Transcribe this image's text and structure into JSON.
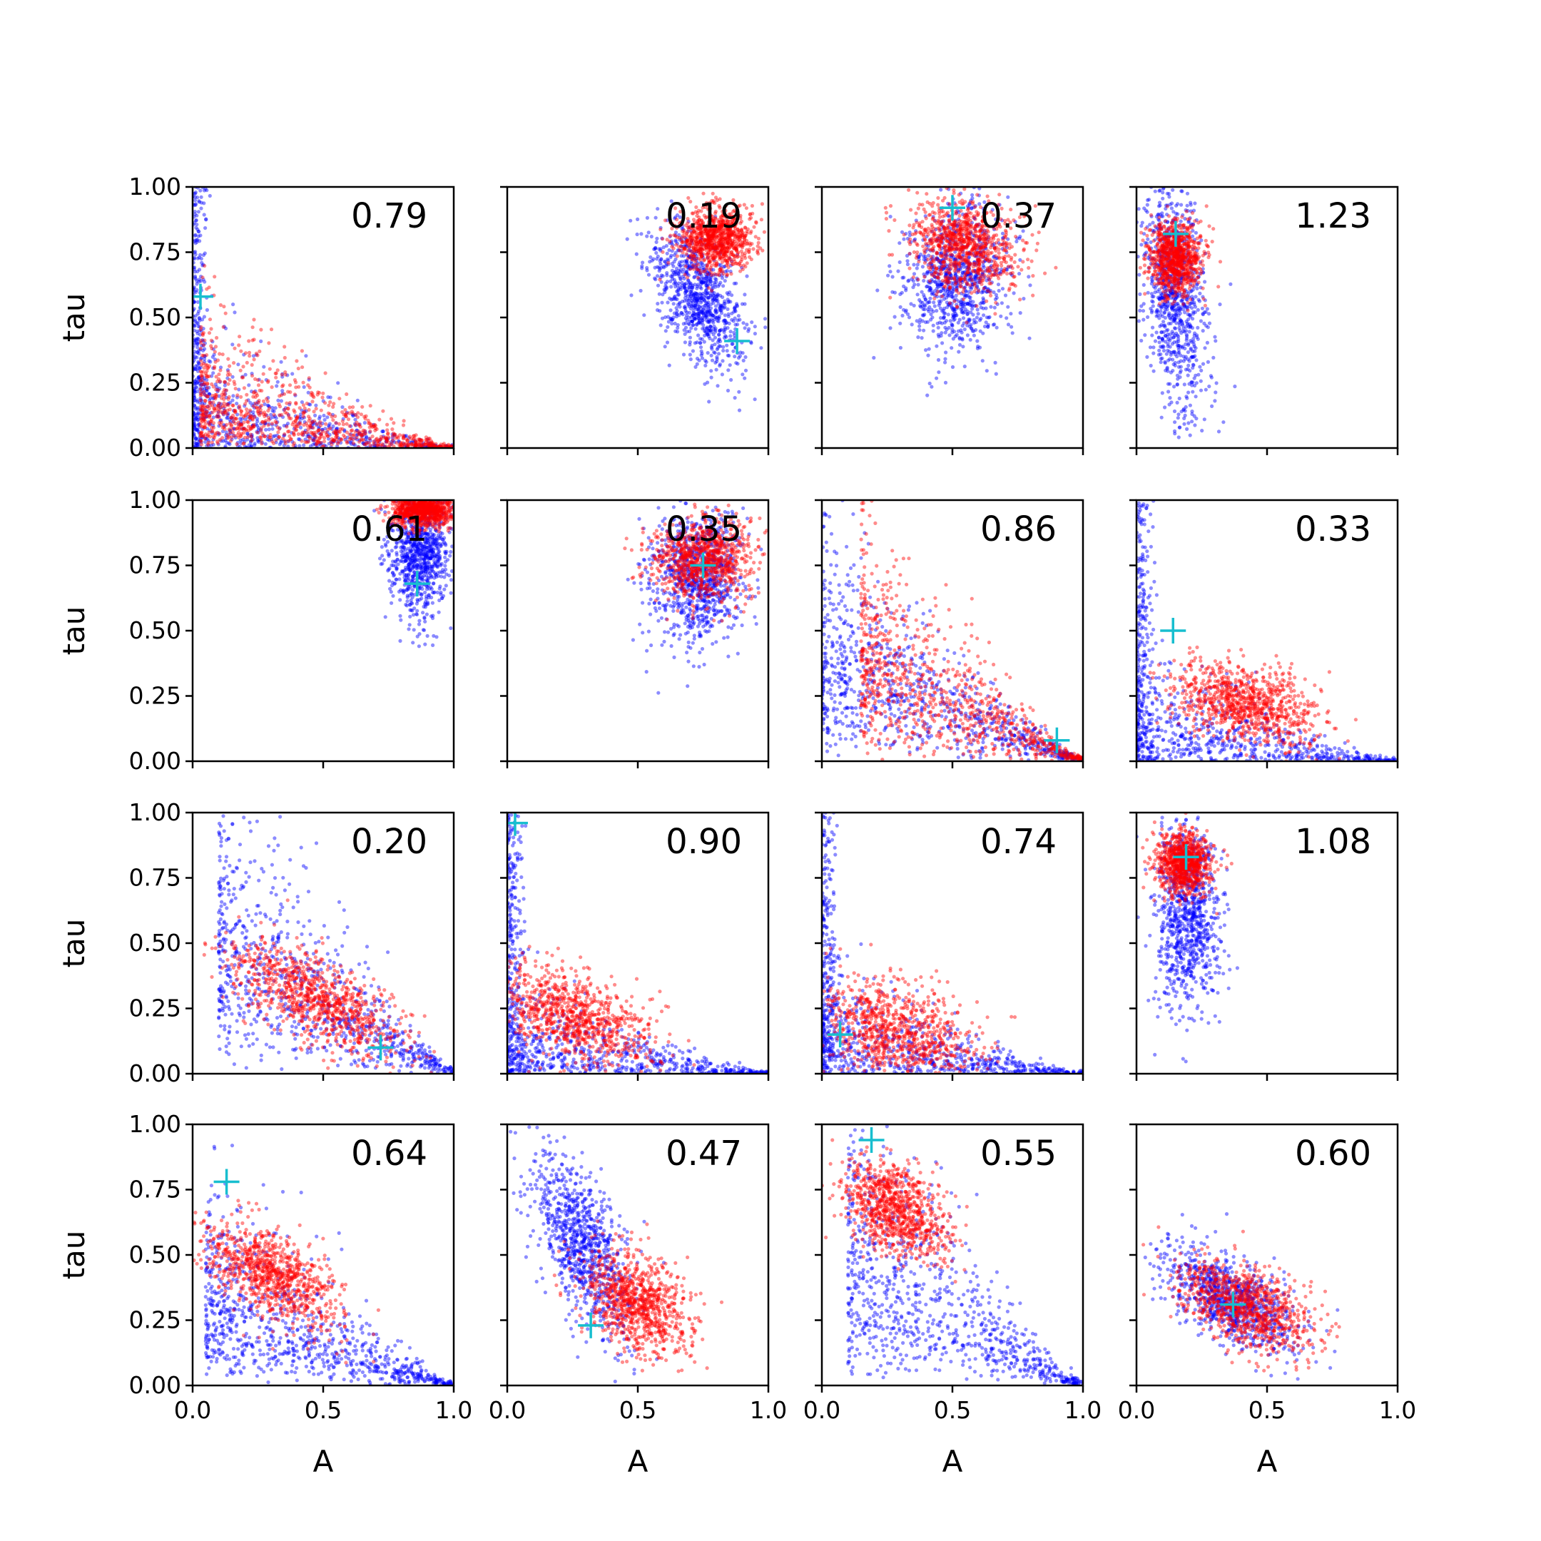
{
  "chart_data": {
    "type": "scatter",
    "layout": "4x4 grid of scatter panels with shared axes",
    "xlabel": "A",
    "ylabel": "tau",
    "xlim": [
      0,
      1
    ],
    "ylim": [
      0,
      1
    ],
    "xticks": [
      "0.0",
      "0.5",
      "1.0"
    ],
    "yticks": [
      "0.00",
      "0.25",
      "0.50",
      "0.75",
      "1.00"
    ],
    "grid": false,
    "legend": "none",
    "colors": {
      "series_blue": "#0000ff",
      "series_red": "#ff0000",
      "marker": "#17becf"
    },
    "series_styles": [
      {
        "color": "#0000ff",
        "marker": "dot"
      },
      {
        "color": "#ff0000",
        "marker": "dot"
      },
      {
        "color": "#17becf",
        "marker": "plus"
      }
    ],
    "panels": [
      {
        "label": "0.79",
        "marker": [
          0.03,
          0.58
        ],
        "blue": {
          "pattern": "decay",
          "a": 0.0,
          "b": 0.22,
          "c": 0.0
        },
        "red": {
          "pattern": "decay",
          "a": 0.03,
          "b": 0.25,
          "c": 0.05
        }
      },
      {
        "label": "0.19",
        "marker": [
          0.88,
          0.41
        ],
        "blue": {
          "mean": [
            0.73,
            0.58
          ],
          "sd": [
            0.09,
            0.13
          ],
          "rho": -0.5
        },
        "red": {
          "mean": [
            0.8,
            0.8
          ],
          "sd": [
            0.07,
            0.06
          ],
          "rho": 0.0
        }
      },
      {
        "label": "0.37",
        "marker": [
          0.5,
          0.92
        ],
        "blue": {
          "mean": [
            0.52,
            0.65
          ],
          "sd": [
            0.1,
            0.14
          ],
          "rho": 0.1
        },
        "red": {
          "mean": [
            0.55,
            0.77
          ],
          "sd": [
            0.1,
            0.09
          ],
          "rho": -0.2
        }
      },
      {
        "label": "1.23",
        "marker": [
          0.15,
          0.82
        ],
        "blue": {
          "mean": [
            0.15,
            0.6
          ],
          "sd": [
            0.06,
            0.22
          ],
          "rho": -0.3
        },
        "red": {
          "mean": [
            0.15,
            0.73
          ],
          "sd": [
            0.05,
            0.07
          ],
          "rho": 0.0
        }
      },
      {
        "label": "0.61",
        "marker": [
          0.86,
          0.68
        ],
        "blue": {
          "mean": [
            0.87,
            0.8
          ],
          "sd": [
            0.06,
            0.12
          ],
          "rho": 0.0
        },
        "red": {
          "mean": [
            0.88,
            0.96
          ],
          "sd": [
            0.06,
            0.03
          ],
          "rho": 0.0
        }
      },
      {
        "label": "0.35",
        "marker": [
          0.75,
          0.75
        ],
        "blue": {
          "mean": [
            0.72,
            0.7
          ],
          "sd": [
            0.09,
            0.12
          ],
          "rho": 0.0
        },
        "red": {
          "mean": [
            0.75,
            0.77
          ],
          "sd": [
            0.1,
            0.08
          ],
          "rho": 0.0
        }
      },
      {
        "label": "0.86",
        "marker": [
          0.9,
          0.08
        ],
        "blue": {
          "pattern": "decay",
          "a": 0.0,
          "b": 0.35,
          "c": 0.35
        },
        "red": {
          "pattern": "decay",
          "a": 0.15,
          "b": 0.4,
          "c": 0.45
        }
      },
      {
        "label": "0.33",
        "marker": [
          0.14,
          0.5
        ],
        "blue": {
          "pattern": "decay",
          "a": 0.0,
          "b": 0.2,
          "c": 0.0
        },
        "red": {
          "mean": [
            0.42,
            0.22
          ],
          "sd": [
            0.14,
            0.08
          ],
          "rho": -0.4
        }
      },
      {
        "label": "0.20",
        "marker": [
          0.72,
          0.1
        ],
        "blue": {
          "pattern": "decay",
          "a": 0.1,
          "b": 0.55,
          "c": 0.45
        },
        "red": {
          "mean": [
            0.48,
            0.28
          ],
          "sd": [
            0.17,
            0.11
          ],
          "rho": -0.7
        }
      },
      {
        "label": "0.90",
        "marker": [
          0.03,
          0.96
        ],
        "blue": {
          "pattern": "decay",
          "a": 0.0,
          "b": 0.18,
          "c": 0.0
        },
        "red": {
          "mean": [
            0.25,
            0.22
          ],
          "sd": [
            0.15,
            0.1
          ],
          "rho": -0.5
        }
      },
      {
        "label": "0.74",
        "marker": [
          0.07,
          0.15
        ],
        "blue": {
          "pattern": "decay",
          "a": 0.0,
          "b": 0.2,
          "c": 0.0
        },
        "red": {
          "mean": [
            0.28,
            0.16
          ],
          "sd": [
            0.16,
            0.1
          ],
          "rho": -0.4
        }
      },
      {
        "label": "1.08",
        "marker": [
          0.19,
          0.83
        ],
        "blue": {
          "mean": [
            0.2,
            0.6
          ],
          "sd": [
            0.06,
            0.18
          ],
          "rho": 0.0
        },
        "red": {
          "mean": [
            0.18,
            0.81
          ],
          "sd": [
            0.05,
            0.06
          ],
          "rho": 0.0
        }
      },
      {
        "label": "0.64",
        "marker": [
          0.13,
          0.78
        ],
        "blue": {
          "pattern": "decay",
          "a": 0.05,
          "b": 0.35,
          "c": 0.2
        },
        "red": {
          "mean": [
            0.3,
            0.43
          ],
          "sd": [
            0.13,
            0.1
          ],
          "rho": -0.6
        }
      },
      {
        "label": "0.47",
        "marker": [
          0.32,
          0.23
        ],
        "blue": {
          "mean": [
            0.28,
            0.55
          ],
          "sd": [
            0.09,
            0.17
          ],
          "rho": -0.6
        },
        "red": {
          "mean": [
            0.5,
            0.32
          ],
          "sd": [
            0.1,
            0.1
          ],
          "rho": -0.4
        }
      },
      {
        "label": "0.55",
        "marker": [
          0.19,
          0.94
        ],
        "blue": {
          "pattern": "decay",
          "a": 0.1,
          "b": 0.6,
          "c": 0.3
        },
        "red": {
          "mean": [
            0.28,
            0.67
          ],
          "sd": [
            0.1,
            0.09
          ],
          "rho": -0.4
        }
      },
      {
        "label": "0.60",
        "marker": [
          0.37,
          0.31
        ],
        "blue": {
          "mean": [
            0.36,
            0.33
          ],
          "sd": [
            0.13,
            0.1
          ],
          "rho": -0.6
        },
        "red": {
          "mean": [
            0.42,
            0.3
          ],
          "sd": [
            0.13,
            0.09
          ],
          "rho": -0.5
        }
      }
    ]
  }
}
